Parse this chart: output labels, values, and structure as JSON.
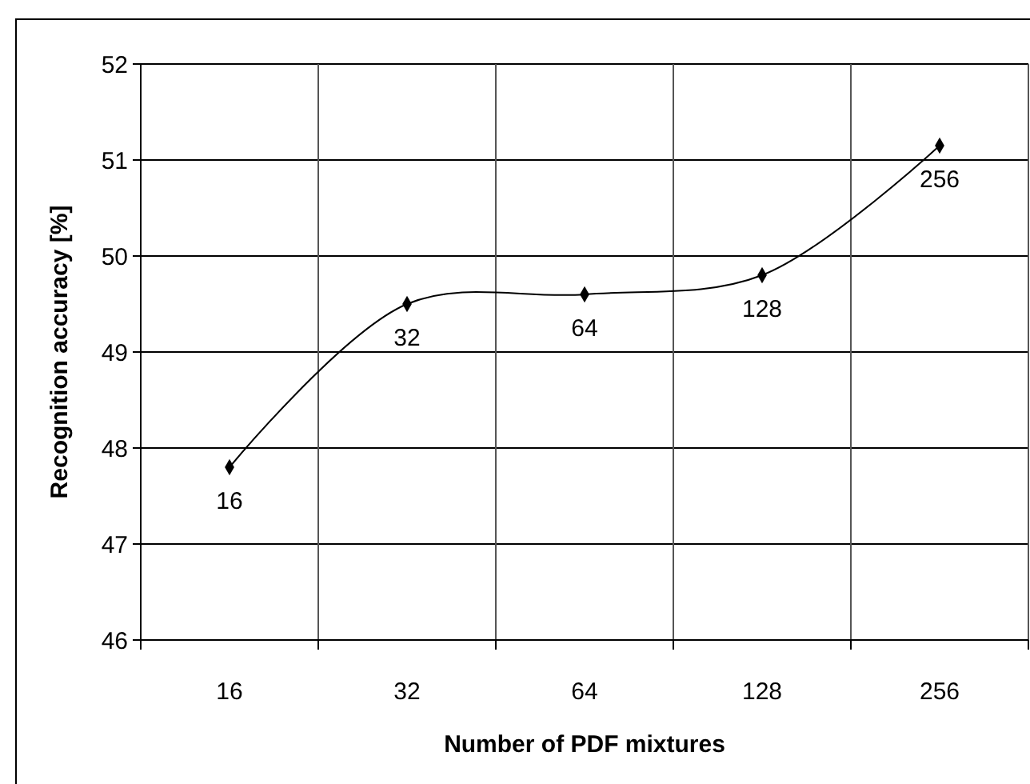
{
  "chart_data": {
    "type": "line",
    "xlabel": "Number of PDF mixtures",
    "ylabel": "Recognition accuracy [%]",
    "categories": [
      "16",
      "32",
      "64",
      "128",
      "256"
    ],
    "series": [
      {
        "color": "#000000",
        "values": [
          47.8,
          49.5,
          49.6,
          49.8,
          51.15
        ]
      }
    ],
    "annotations": [
      {
        "text": "16",
        "x": "16",
        "y": 47.8
      },
      {
        "text": "32",
        "x": "32",
        "y": 49.5
      },
      {
        "text": "64",
        "x": "64",
        "y": 49.6
      },
      {
        "text": "128",
        "x": "128",
        "y": 49.8
      },
      {
        "text": "256",
        "x": "256",
        "y": 51.15
      }
    ],
    "ylim": [
      46,
      52
    ],
    "yticks": [
      46,
      47,
      48,
      49,
      50,
      51,
      52
    ],
    "grid": true,
    "marker": "diamond",
    "line_style": "solid"
  }
}
